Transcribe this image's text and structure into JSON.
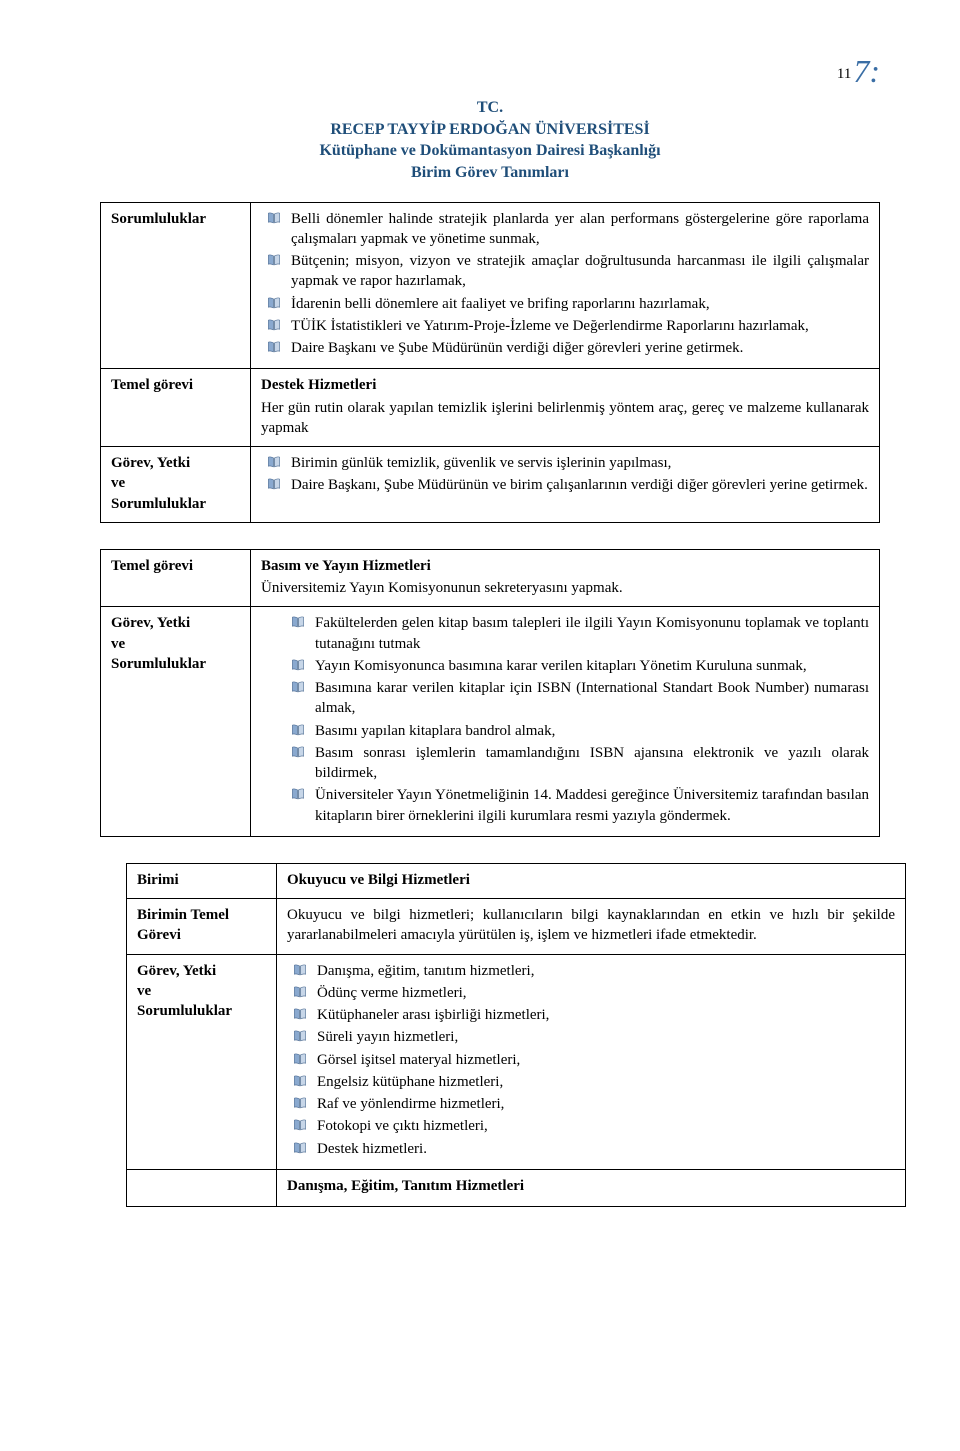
{
  "page": {
    "number": "11",
    "slash": "7:"
  },
  "header": {
    "l1": "TC.",
    "l2": "RECEP TAYYİP ERDOĞAN ÜNİVERSİTESİ",
    "l3": "Kütüphane ve Dokümantasyon Dairesi Başkanlığı",
    "l4": "Birim Görev Tanımları"
  },
  "labels": {
    "sorumluluklar": "Sorumluluklar",
    "temel_gorevi": "Temel görevi",
    "gorev_yetki": "Görev, Yetki\nve\nSorumluluklar",
    "birimi": "Birimi",
    "birimin_temel": "Birimin Temel\nGörevi"
  },
  "box1": {
    "resp_items": [
      "Belli dönemler halinde stratejik planlarda yer alan performans göstergelerine göre raporlama çalışmaları yapmak ve yönetime sunmak,",
      "Bütçenin; misyon, vizyon ve stratejik amaçlar doğrultusunda harcanması ile ilgili çalışmalar yapmak ve rapor hazırlamak,",
      "İdarenin belli dönemlere ait faaliyet ve brifing raporlarını hazırlamak,",
      "TÜİK İstatistikleri ve Yatırım-Proje-İzleme ve Değerlendirme Raporlarını hazırlamak,",
      "Daire Başkanı ve Şube Müdürünün verdiği diğer görevleri yerine getirmek."
    ],
    "destek_title": "Destek Hizmetleri",
    "temel_gorev_text": "Her gün rutin olarak yapılan temizlik işlerini belirlenmiş yöntem araç, gereç ve malzeme kullanarak yapmak",
    "gy_items": [
      "Birimin günlük temizlik, güvenlik ve servis işlerinin yapılması,",
      "Daire Başkanı, Şube Müdürünün ve birim çalışanlarının verdiği diğer görevleri yerine getirmek."
    ]
  },
  "box2": {
    "basim_title": "Basım ve  Yayın Hizmetleri",
    "temel_text": "Üniversitemiz Yayın Komisyonunun sekreteryasını yapmak.",
    "gy_items": [
      "Fakültelerden gelen kitap basım talepleri ile ilgili Yayın Komisyonunu toplamak ve toplantı tutanağını tutmak",
      "Yayın Komisyonunca basımına karar verilen kitapları Yönetim Kuruluna sunmak,",
      "Basımına karar verilen kitaplar için ISBN (International Standart Book Number) numarası almak,",
      "Basımı yapılan kitaplara bandrol almak,",
      "Basım sonrası işlemlerin tamamlandığını ISBN ajansına elektronik ve yazılı olarak bildirmek,",
      "Üniversiteler Yayın Yönetmeliğinin 14. Maddesi gereğince Üniversitemiz tarafından basılan kitapların birer örneklerini ilgili kurumlara resmi yazıyla göndermek."
    ]
  },
  "box3": {
    "birimi_text": "Okuyucu ve Bilgi Hizmetleri",
    "birimin_temel_text": "Okuyucu ve bilgi hizmetleri; kullanıcıların bilgi kaynaklarından en etkin ve hızlı bir şekilde yararlanabilmeleri amacıyla yürütülen iş, işlem ve hizmetleri ifade etmektedir.",
    "gy_items": [
      "Danışma, eğitim, tanıtım hizmetleri,",
      "Ödünç verme hizmetleri,",
      "Kütüphaneler arası işbirliği hizmetleri,",
      "Süreli yayın hizmetleri,",
      "Görsel işitsel materyal hizmetleri,",
      "Engelsiz kütüphane hizmetleri,",
      "Raf ve yönlendirme hizmetleri,",
      "Fotokopi ve çıktı hizmetleri,",
      "Destek  hizmetleri."
    ],
    "danisma_title": "Danışma, Eğitim, Tanıtım Hizmetleri"
  },
  "colors": {
    "header_text": "#1f4e79",
    "bullet_fill": "#8aa9cf",
    "bullet_stroke": "#44648b",
    "slash_color": "#3a6ea5"
  }
}
